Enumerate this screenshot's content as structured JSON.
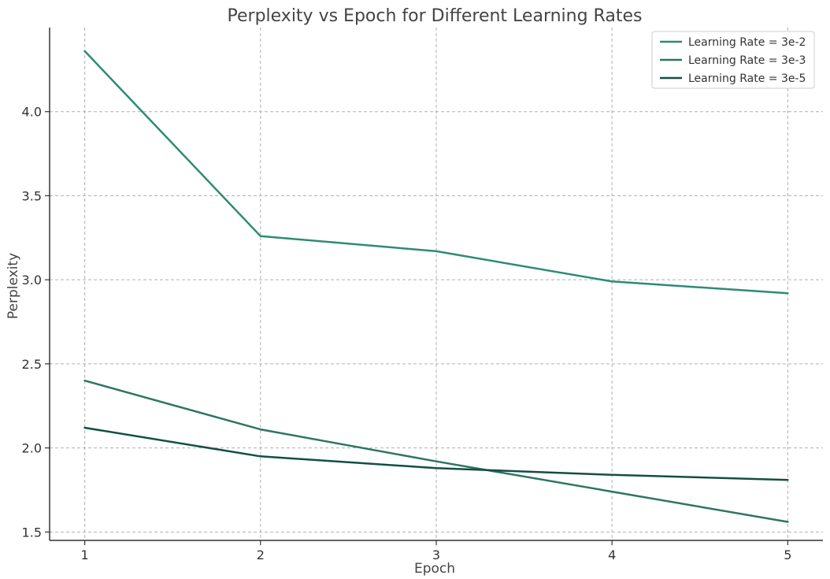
{
  "chart_data": {
    "type": "line",
    "title": "Perplexity vs Epoch for Different Learning Rates",
    "xlabel": "Epoch",
    "ylabel": "Perplexity",
    "x": [
      1,
      2,
      3,
      4,
      5
    ],
    "x_ticks": [
      "1",
      "2",
      "3",
      "4",
      "5"
    ],
    "y_ticks": [
      "1.5",
      "2.0",
      "2.5",
      "3.0",
      "3.5",
      "4.0"
    ],
    "y_tick_values": [
      1.5,
      2.0,
      2.5,
      3.0,
      3.5,
      4.0
    ],
    "xlim": [
      0.8,
      5.2
    ],
    "ylim": [
      1.45,
      4.5
    ],
    "grid": true,
    "legend_position": "top-right",
    "series": [
      {
        "name": "Learning Rate = 3e-2",
        "values": [
          4.36,
          3.26,
          3.17,
          2.99,
          2.92
        ],
        "color": "#2e8b74"
      },
      {
        "name": "Learning Rate = 3e-3",
        "values": [
          2.4,
          2.11,
          1.92,
          1.74,
          1.56
        ],
        "color": "#2f7563"
      },
      {
        "name": "Learning Rate = 3e-5",
        "values": [
          2.12,
          1.95,
          1.88,
          1.84,
          1.81
        ],
        "color": "#134f42"
      }
    ]
  }
}
